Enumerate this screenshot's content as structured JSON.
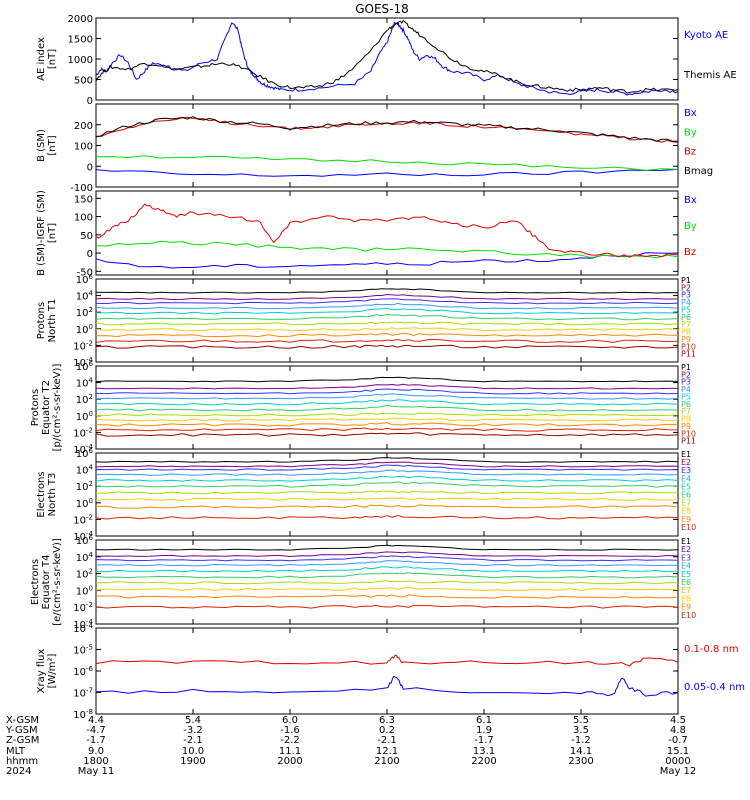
{
  "title": "GOES-18",
  "colors": {
    "blue": "#0000ff",
    "green": "#00dd00",
    "red": "#dd0000",
    "black": "#000000",
    "P": [
      "#000000",
      "#800080",
      "#3333ff",
      "#3399ff",
      "#00cccc",
      "#33cc66",
      "#aadd00",
      "#ffcc00",
      "#ff8800",
      "#dd2200",
      "#990000"
    ],
    "E": [
      "#000000",
      "#800080",
      "#3333ff",
      "#3399ff",
      "#00cccc",
      "#33cc66",
      "#aadd00",
      "#ffcc00",
      "#ff8800",
      "#dd2200",
      "#990000"
    ]
  },
  "chart_data": [
    {
      "id": "ae",
      "type": "line",
      "ylabel": [
        "AE index",
        "[nT]"
      ],
      "yticks": [
        "2000",
        "1500",
        "1000",
        "500",
        "0"
      ],
      "ylim": [
        0,
        2000
      ],
      "legend": [
        {
          "label": "Kyoto AE",
          "color": "#0000ff"
        },
        {
          "label": "Themis AE",
          "color": "#000000"
        }
      ],
      "series": [
        {
          "name": "Kyoto AE",
          "color": "#0000ff",
          "x": [
            0,
            3,
            6,
            10,
            15,
            20,
            25,
            30,
            35,
            45,
            55,
            65,
            75,
            80,
            84,
            88,
            90,
            93,
            95,
            98,
            100,
            103,
            106,
            110,
            115,
            125,
            140,
            160,
            170,
            175,
            180,
            183,
            185,
            188,
            190,
            193,
            196,
            200,
            205,
            210,
            215,
            220,
            230,
            240,
            250,
            260,
            270,
            280,
            290,
            300,
            310,
            320,
            330,
            340,
            350,
            360
          ],
          "y": [
            600,
            750,
            700,
            900,
            1100,
            900,
            500,
            700,
            900,
            800,
            700,
            900,
            1000,
            1500,
            1900,
            1700,
            1300,
            900,
            700,
            600,
            500,
            400,
            350,
            300,
            250,
            250,
            300,
            400,
            700,
            1100,
            1400,
            1700,
            1900,
            1800,
            1700,
            1500,
            1200,
            1000,
            1100,
            1000,
            800,
            700,
            650,
            500,
            600,
            400,
            300,
            200,
            150,
            200,
            250,
            200,
            150,
            200,
            250,
            200
          ]
        },
        {
          "name": "Themis AE",
          "color": "#000000",
          "x": [
            0,
            5,
            10,
            20,
            30,
            40,
            50,
            60,
            70,
            80,
            90,
            100,
            110,
            120,
            130,
            140,
            150,
            160,
            170,
            180,
            185,
            190,
            195,
            200,
            210,
            220,
            230,
            240,
            250,
            260,
            270,
            280,
            290,
            300,
            310,
            320,
            330,
            340,
            350,
            360
          ],
          "y": [
            500,
            700,
            800,
            750,
            900,
            850,
            750,
            800,
            850,
            900,
            800,
            600,
            400,
            300,
            300,
            350,
            500,
            800,
            1200,
            1700,
            1850,
            1900,
            1750,
            1600,
            1300,
            1000,
            800,
            700,
            600,
            450,
            350,
            300,
            250,
            250,
            300,
            250,
            200,
            250,
            250,
            250
          ]
        }
      ]
    },
    {
      "id": "bsm",
      "type": "line",
      "ylabel": [
        "B (SM)",
        "[nT]"
      ],
      "yticks": [
        "200",
        "100",
        "0",
        "-100"
      ],
      "ylim": [
        -100,
        300
      ],
      "legend": [
        {
          "label": "Bx",
          "color": "#0000ff"
        },
        {
          "label": "By",
          "color": "#00dd00"
        },
        {
          "label": "Bz",
          "color": "#dd0000"
        },
        {
          "label": "Bmag",
          "color": "#000000"
        }
      ],
      "series": [
        {
          "name": "Bx",
          "color": "#0000ff",
          "x": [
            0,
            60,
            120,
            180,
            240,
            300,
            360
          ],
          "y": [
            -20,
            -40,
            -45,
            -40,
            -40,
            -30,
            -15
          ]
        },
        {
          "name": "By",
          "color": "#00dd00",
          "x": [
            0,
            60,
            120,
            180,
            240,
            300,
            360
          ],
          "y": [
            50,
            45,
            30,
            25,
            10,
            -10,
            -15
          ]
        },
        {
          "name": "Bz",
          "color": "#dd0000",
          "x": [
            0,
            20,
            40,
            60,
            80,
            100,
            120,
            140,
            160,
            180,
            200,
            220,
            240,
            260,
            280,
            300,
            320,
            340,
            360
          ],
          "y": [
            140,
            190,
            220,
            230,
            210,
            200,
            180,
            190,
            200,
            205,
            210,
            200,
            190,
            180,
            170,
            155,
            140,
            125,
            115
          ]
        },
        {
          "name": "Bmag",
          "color": "#000000",
          "x": [
            0,
            20,
            40,
            60,
            80,
            100,
            120,
            140,
            160,
            180,
            200,
            220,
            240,
            260,
            280,
            300,
            320,
            340,
            360
          ],
          "y": [
            145,
            195,
            225,
            235,
            215,
            205,
            185,
            195,
            205,
            210,
            215,
            205,
            195,
            185,
            175,
            160,
            145,
            130,
            120
          ]
        }
      ]
    },
    {
      "id": "bigrf",
      "type": "line",
      "ylabel": [
        "B (SM)-IGRF (SM)",
        "[nT]"
      ],
      "yticks": [
        "150",
        "100",
        "50",
        "0",
        "-50"
      ],
      "ylim": [
        -60,
        170
      ],
      "legend": [
        {
          "label": "Bx",
          "color": "#0000ff"
        },
        {
          "label": "By",
          "color": "#00dd00"
        },
        {
          "label": "Bz",
          "color": "#dd0000"
        }
      ],
      "series": [
        {
          "name": "Bx",
          "color": "#0000ff",
          "x": [
            0,
            40,
            80,
            120,
            160,
            200,
            240,
            280,
            320,
            360
          ],
          "y": [
            -20,
            -40,
            -35,
            -35,
            -30,
            -30,
            -20,
            -20,
            -5,
            0
          ]
        },
        {
          "name": "By",
          "color": "#00dd00",
          "x": [
            0,
            40,
            80,
            120,
            160,
            200,
            240,
            280,
            320,
            360
          ],
          "y": [
            20,
            30,
            25,
            15,
            10,
            10,
            5,
            -5,
            -10,
            -10
          ]
        },
        {
          "name": "Bz",
          "color": "#dd0000",
          "x": [
            0,
            10,
            20,
            30,
            40,
            50,
            60,
            80,
            100,
            110,
            120,
            140,
            160,
            180,
            200,
            220,
            240,
            260,
            270,
            280,
            300,
            320,
            340,
            360
          ],
          "y": [
            40,
            70,
            90,
            130,
            120,
            100,
            110,
            100,
            90,
            30,
            80,
            100,
            90,
            90,
            100,
            80,
            70,
            90,
            50,
            10,
            0,
            -5,
            -10,
            -5
          ]
        }
      ]
    },
    {
      "id": "p_t1",
      "type": "line",
      "ylabel": [
        "Protons",
        "North T1"
      ],
      "yticks": [
        "10^6",
        "10^4",
        "10^2",
        "10^0",
        "10^-2",
        "10^-4"
      ],
      "ylim": [
        -4,
        6
      ],
      "log": true,
      "labels": [
        "P1",
        "P2",
        "P3",
        "P4",
        "P5",
        "P6",
        "P7",
        "P8",
        "P9",
        "P10",
        "P11"
      ],
      "levels": [
        4.2,
        3.6,
        3.1,
        2.5,
        1.9,
        1.2,
        0.6,
        -0.1,
        -0.8,
        -1.5,
        -2.2
      ]
    },
    {
      "id": "p_t2",
      "type": "line",
      "ylabel": [
        "Protons",
        "Equator T2",
        "[p/(cm²-s-sr-keV)]"
      ],
      "yticks": [
        "10^6",
        "10^4",
        "10^2",
        "10^0",
        "10^-2",
        "10^-4"
      ],
      "ylim": [
        -4,
        6
      ],
      "log": true,
      "labels": [
        "P1",
        "P2",
        "P3",
        "P4",
        "P5",
        "P6",
        "P7",
        "P8",
        "P9",
        "P10",
        "P11"
      ],
      "levels": [
        4.0,
        3.3,
        2.7,
        2.1,
        1.4,
        0.7,
        0.1,
        -0.5,
        -1.1,
        -1.7,
        -2.3
      ]
    },
    {
      "id": "e_t3",
      "type": "line",
      "ylabel": [
        "Electrons",
        "North T3"
      ],
      "yticks": [
        "10^6",
        "10^4",
        "10^2",
        "10^0",
        "10^-2",
        "10^-4"
      ],
      "ylim": [
        -4,
        6
      ],
      "log": true,
      "labels": [
        "E1",
        "E2",
        "E3",
        "E4",
        "E5",
        "E6",
        "E7",
        "E8",
        "E9",
        "E10"
      ],
      "levels": [
        4.8,
        4.4,
        4.0,
        3.4,
        2.7,
        2.0,
        1.2,
        0.4,
        -0.5,
        -1.8
      ]
    },
    {
      "id": "e_t4",
      "type": "line",
      "ylabel": [
        "Electrons",
        "Equator T4",
        "[e/(cm²-s-sr-keV)]"
      ],
      "yticks": [
        "10^6",
        "10^4",
        "10^2",
        "10^0",
        "10^-2",
        "10^-4"
      ],
      "ylim": [
        -4,
        6
      ],
      "log": true,
      "labels": [
        "E1",
        "E2",
        "E3",
        "E4",
        "E5",
        "E6",
        "E7",
        "E8",
        "E9",
        "E10"
      ],
      "levels": [
        4.7,
        4.1,
        3.6,
        3.0,
        2.3,
        1.6,
        0.9,
        0.1,
        -0.8,
        -2.0
      ]
    },
    {
      "id": "xray",
      "type": "line",
      "ylabel": [
        "Xray flux",
        "[W/m²]"
      ],
      "yticks": [
        "10^-4",
        "10^-5",
        "10^-6",
        "10^-7",
        "10^-8"
      ],
      "ylim": [
        -8,
        -4
      ],
      "log": true,
      "legend": [
        {
          "label": "0.1-0.8 nm",
          "color": "#dd0000"
        },
        {
          "label": "0.05-0.4 nm",
          "color": "#0000ff"
        }
      ],
      "series": [
        {
          "name": "0.1-0.8 nm",
          "color": "#dd0000",
          "x": [
            0,
            60,
            120,
            180,
            185,
            190,
            240,
            300,
            330,
            340,
            360
          ],
          "y": [
            -5.6,
            -5.6,
            -5.6,
            -5.6,
            -5.3,
            -5.6,
            -5.6,
            -5.6,
            -5.7,
            -5.4,
            -5.6
          ]
        },
        {
          "name": "0.05-0.4 nm",
          "color": "#0000ff",
          "x": [
            0,
            60,
            120,
            180,
            185,
            190,
            240,
            300,
            320,
            325,
            330,
            340,
            360
          ],
          "y": [
            -7.0,
            -6.9,
            -7.0,
            -6.8,
            -6.2,
            -6.8,
            -7.0,
            -7.0,
            -7.1,
            -6.3,
            -6.8,
            -7.1,
            -7.0
          ]
        }
      ]
    }
  ],
  "footer": {
    "row_labels": [
      "X-GSM",
      "Y-GSM",
      "Z-GSM",
      "MLT",
      "hhmm",
      "2024"
    ],
    "columns": [
      [
        "4.4",
        "-4.7",
        "-1.7",
        "9.0",
        "1800",
        "May 11"
      ],
      [
        "5.4",
        "-3.2",
        "-2.1",
        "10.0",
        "1900",
        ""
      ],
      [
        "6.0",
        "-1.6",
        "-2.2",
        "11.1",
        "2000",
        ""
      ],
      [
        "6.3",
        "0.2",
        "-2.1",
        "12.1",
        "2100",
        ""
      ],
      [
        "6.1",
        "1.9",
        "-1.7",
        "13.1",
        "2200",
        ""
      ],
      [
        "5.5",
        "3.5",
        "-1.2",
        "14.1",
        "2300",
        ""
      ],
      [
        "4.5",
        "4.8",
        "-0.7",
        "15.1",
        "0000",
        "May 12"
      ]
    ]
  }
}
